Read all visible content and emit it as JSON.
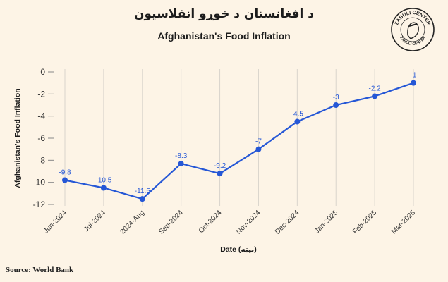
{
  "header": {
    "title_pashto": "د افغانستان د خوړو انفلاسیون",
    "title_english": "Afghanistan's Food Inflation"
  },
  "logo": {
    "text_top": "ZABULI CENTER",
    "text_bottom": "ZABULI CENTER"
  },
  "source": "Source: World Bank",
  "colors": {
    "line": "#2557d6",
    "grid": "#d9d4cc",
    "background": "#fdf4e6"
  },
  "chart_data": {
    "type": "line",
    "title": "Afghanistan's Food Inflation",
    "xlabel": "Date (نیټه)",
    "ylabel": "Afghanistan's Food Inflation",
    "categories": [
      "Jun-2024",
      "Jul-2024",
      "2024-Aug",
      "Sep-2024",
      "Oct-2024",
      "Nov-2024",
      "Dec-2024",
      "Jan-2025",
      "Feb-2025",
      "Mar-2025"
    ],
    "series": [
      {
        "values": [
          -9.8,
          -10.5,
          -11.5,
          -8.3,
          -9.2,
          -7,
          -4.5,
          -3,
          -2.2,
          -1
        ]
      }
    ],
    "data_labels": [
      "-9.8",
      "-10.5",
      "-11.5",
      "-8.3",
      "-9.2",
      "-7",
      "-4.5",
      "-3",
      "-2.2",
      "-1"
    ],
    "ylim": [
      -12,
      0
    ],
    "yticks": [
      0,
      -2,
      -4,
      -6,
      -8,
      -10,
      -12
    ],
    "ytick_labels": [
      "0",
      "-2",
      "-4",
      "-6",
      "-8",
      "-10",
      "-12"
    ],
    "grid": "vertical",
    "legend": "none"
  }
}
